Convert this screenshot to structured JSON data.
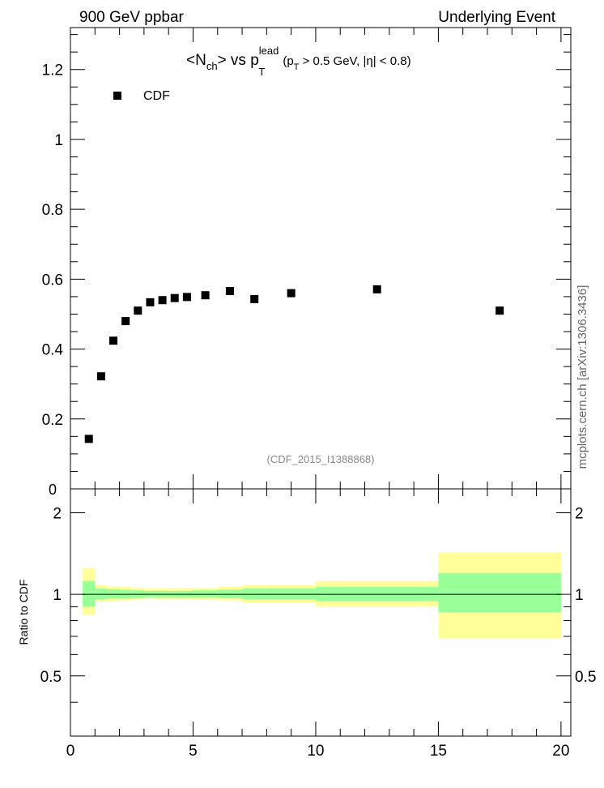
{
  "header": {
    "left": "900 GeV ppbar",
    "right": "Underlying Event"
  },
  "title": {
    "n_open": "<N",
    "n_sub": "ch",
    "n_close": "> vs p",
    "p_sup": "lead",
    "p_sub": "T",
    "cut_open": "(p",
    "cut_sub": "T",
    "cut_rest": " > 0.5 GeV, |η| < 0.8)"
  },
  "watermark": "mcplots.cern.ch [arXiv:1306.3436]",
  "analysis_id": "(CDF_2015_I1388868)",
  "ratio_ylabel": "Ratio to CDF",
  "colors": {
    "marker": "#000000",
    "band_inner": "#99ff99",
    "band_outer": "#ffff99",
    "analysis_text": "#888888",
    "watermark_text": "#666666"
  },
  "chart_data": [
    {
      "type": "scatter",
      "panel": "main",
      "legend": [
        {
          "name": "CDF",
          "marker": "square"
        }
      ],
      "legend_position": "top-left",
      "xlim": [
        0,
        20.4
      ],
      "ylim": [
        0,
        1.32
      ],
      "y_ticks": [
        "0.2",
        "0.4",
        "0.6",
        "0.8",
        "1",
        "1.2"
      ],
      "y_tick_values": [
        0.2,
        0.4,
        0.6,
        0.8,
        1.0,
        1.2
      ],
      "y_cut_label": "0",
      "grid": false,
      "series": [
        {
          "name": "CDF",
          "x": [
            0.75,
            1.25,
            1.75,
            2.25,
            2.75,
            3.25,
            3.75,
            4.25,
            4.75,
            5.5,
            6.5,
            7.5,
            9.0,
            12.5,
            17.5
          ],
          "y": [
            0.143,
            0.322,
            0.424,
            0.48,
            0.51,
            0.534,
            0.54,
            0.546,
            0.549,
            0.554,
            0.566,
            0.543,
            0.56,
            0.571,
            0.51
          ]
        }
      ]
    },
    {
      "type": "area",
      "panel": "ratio",
      "xlim": [
        0,
        20.4
      ],
      "ylim": [
        0.3,
        2.45
      ],
      "y_scale": "log",
      "y_ticks": [
        "0.5",
        "1",
        "2"
      ],
      "y_tick_values": [
        0.5,
        1,
        2
      ],
      "x_ticks": [
        "0",
        "5",
        "10",
        "15",
        "20"
      ],
      "x_tick_values": [
        0,
        5,
        10,
        15,
        20
      ],
      "reference_line": 1,
      "bins": [
        {
          "lo": 0.5,
          "hi": 1.0,
          "inner": [
            0.9,
            1.12
          ],
          "outer": [
            0.84,
            1.25
          ]
        },
        {
          "lo": 1.0,
          "hi": 1.5,
          "inner": [
            0.96,
            1.05
          ],
          "outer": [
            0.94,
            1.08
          ]
        },
        {
          "lo": 1.5,
          "hi": 2.0,
          "inner": [
            0.965,
            1.045
          ],
          "outer": [
            0.945,
            1.07
          ]
        },
        {
          "lo": 2.0,
          "hi": 2.5,
          "inner": [
            0.965,
            1.04
          ],
          "outer": [
            0.95,
            1.065
          ]
        },
        {
          "lo": 2.5,
          "hi": 3.0,
          "inner": [
            0.97,
            1.035
          ],
          "outer": [
            0.955,
            1.06
          ]
        },
        {
          "lo": 3.0,
          "hi": 3.5,
          "inner": [
            0.975,
            1.03
          ],
          "outer": [
            0.965,
            1.05
          ]
        },
        {
          "lo": 3.5,
          "hi": 4.0,
          "inner": [
            0.975,
            1.03
          ],
          "outer": [
            0.96,
            1.055
          ]
        },
        {
          "lo": 4.0,
          "hi": 4.5,
          "inner": [
            0.975,
            1.03
          ],
          "outer": [
            0.96,
            1.055
          ]
        },
        {
          "lo": 4.5,
          "hi": 5.0,
          "inner": [
            0.975,
            1.03
          ],
          "outer": [
            0.96,
            1.055
          ]
        },
        {
          "lo": 5.0,
          "hi": 6.0,
          "inner": [
            0.975,
            1.035
          ],
          "outer": [
            0.955,
            1.055
          ]
        },
        {
          "lo": 6.0,
          "hi": 7.0,
          "inner": [
            0.97,
            1.04
          ],
          "outer": [
            0.95,
            1.065
          ]
        },
        {
          "lo": 7.0,
          "hi": 8.0,
          "inner": [
            0.96,
            1.05
          ],
          "outer": [
            0.93,
            1.08
          ]
        },
        {
          "lo": 8.0,
          "hi": 10.0,
          "inner": [
            0.96,
            1.05
          ],
          "outer": [
            0.93,
            1.08
          ]
        },
        {
          "lo": 10.0,
          "hi": 15.0,
          "inner": [
            0.945,
            1.065
          ],
          "outer": [
            0.9,
            1.12
          ]
        },
        {
          "lo": 15.0,
          "hi": 20.0,
          "inner": [
            0.86,
            1.2
          ],
          "outer": [
            0.69,
            1.43
          ]
        }
      ]
    }
  ]
}
